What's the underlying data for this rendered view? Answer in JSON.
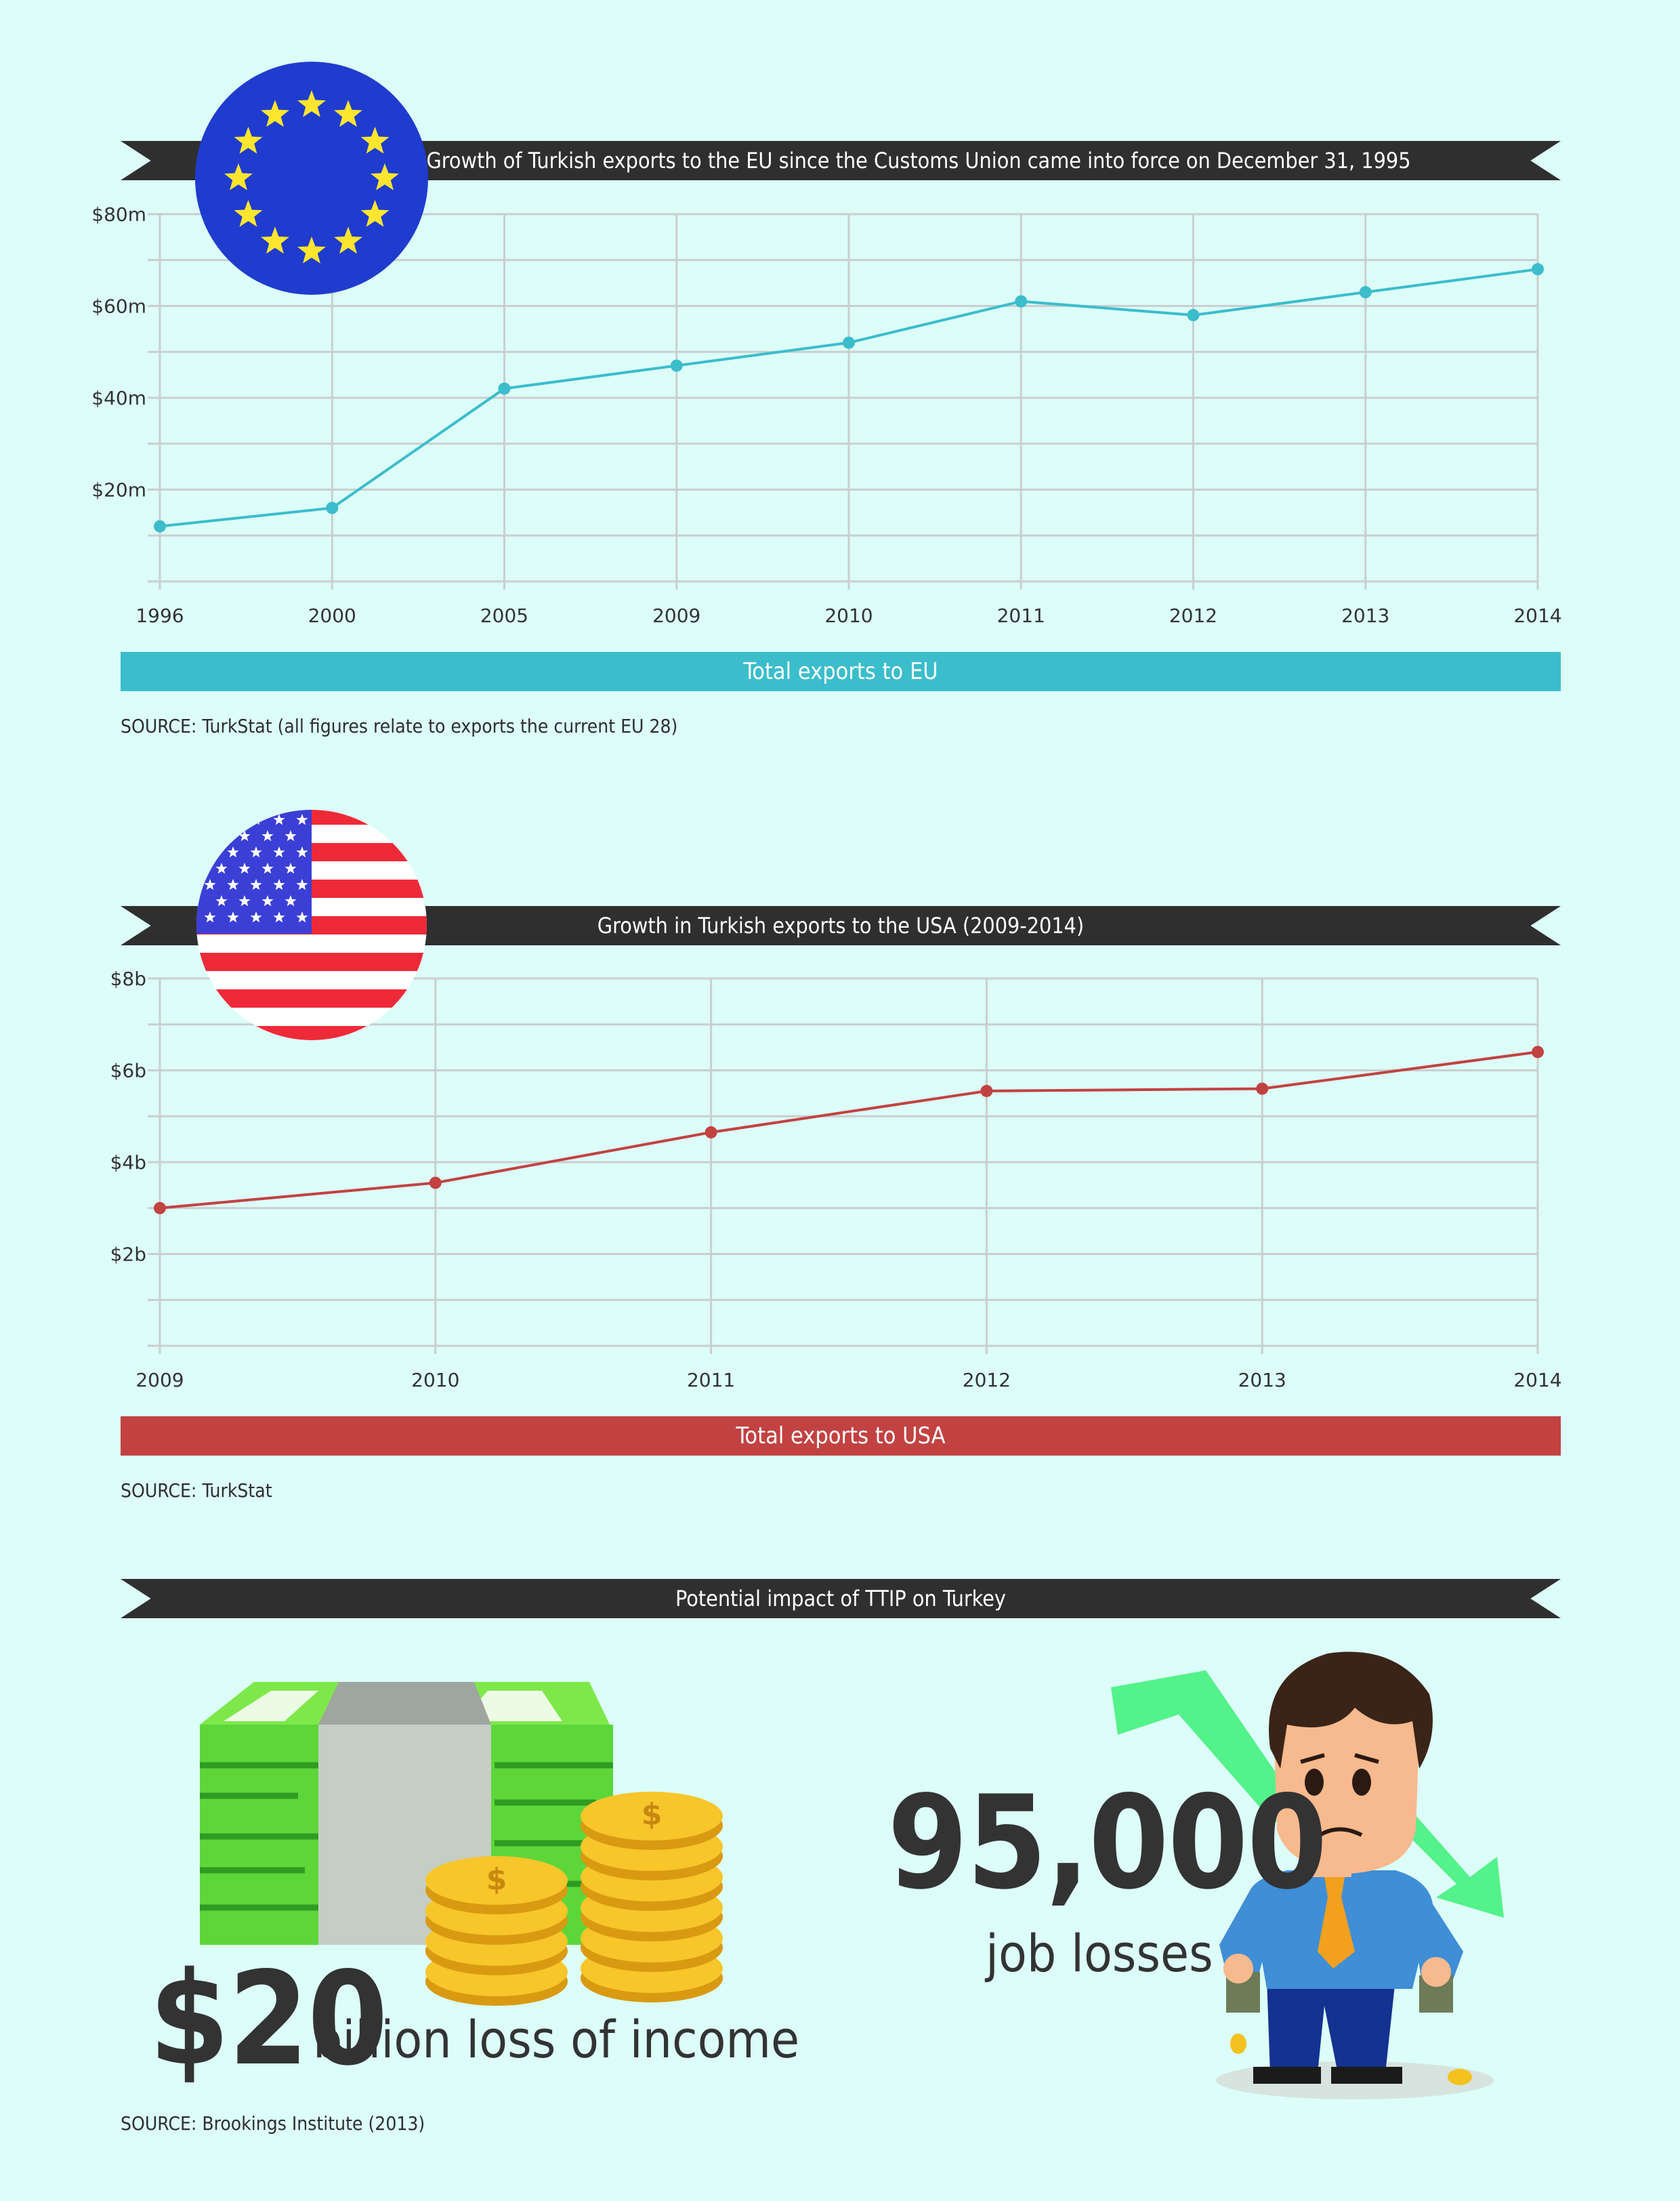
{
  "colors": {
    "background": "#dcfdf8",
    "eu_line": "#3bbdcc",
    "usa_line": "#c24242",
    "ribbon": "#2f2f2f"
  },
  "chart_data": [
    {
      "type": "line",
      "title": "Growth of Turkish exports to the EU since the Customs Union came  into force on December 31, 1995",
      "categories": [
        "1996",
        "2000",
        "2005",
        "2009",
        "2010",
        "2011",
        "2012",
        "2013",
        "2014"
      ],
      "series": [
        {
          "name": "Total exports to EU",
          "values": [
            12,
            16,
            42,
            47,
            52,
            61,
            58,
            63,
            68
          ]
        }
      ],
      "y_ticks": [
        "$20m",
        "$40m",
        "$60m",
        "$80m"
      ],
      "ylim": [
        0,
        80
      ],
      "grid": true,
      "legend": "Total exports to EU",
      "source": "SOURCE: TurkStat (all figures relate to exports the current EU 28)"
    },
    {
      "type": "line",
      "title": "Growth in Turkish exports to the USA (2009-2014)",
      "categories": [
        "2009",
        "2010",
        "2011",
        "2012",
        "2013",
        "2014"
      ],
      "series": [
        {
          "name": "Total exports to USA",
          "values": [
            3.0,
            3.55,
            4.65,
            5.55,
            5.6,
            6.4
          ]
        }
      ],
      "y_ticks": [
        "$2b",
        "$4b",
        "$6b",
        "$8b"
      ],
      "ylim": [
        0,
        8
      ],
      "grid": true,
      "legend": "Total exports to USA",
      "source": "SOURCE: TurkStat"
    }
  ],
  "ttip": {
    "title": "Potential impact of TTIP on Turkey",
    "income_number": "$20",
    "income_text": "billion loss of income",
    "jobs_number": "95,000",
    "jobs_text": "job losses",
    "source": "SOURCE: Brookings Institute (2013)"
  },
  "icons": [
    "eu-flag-icon",
    "us-flag-icon",
    "money-stack-icon",
    "coins-icon",
    "worried-man-icon",
    "down-arrow-icon"
  ]
}
